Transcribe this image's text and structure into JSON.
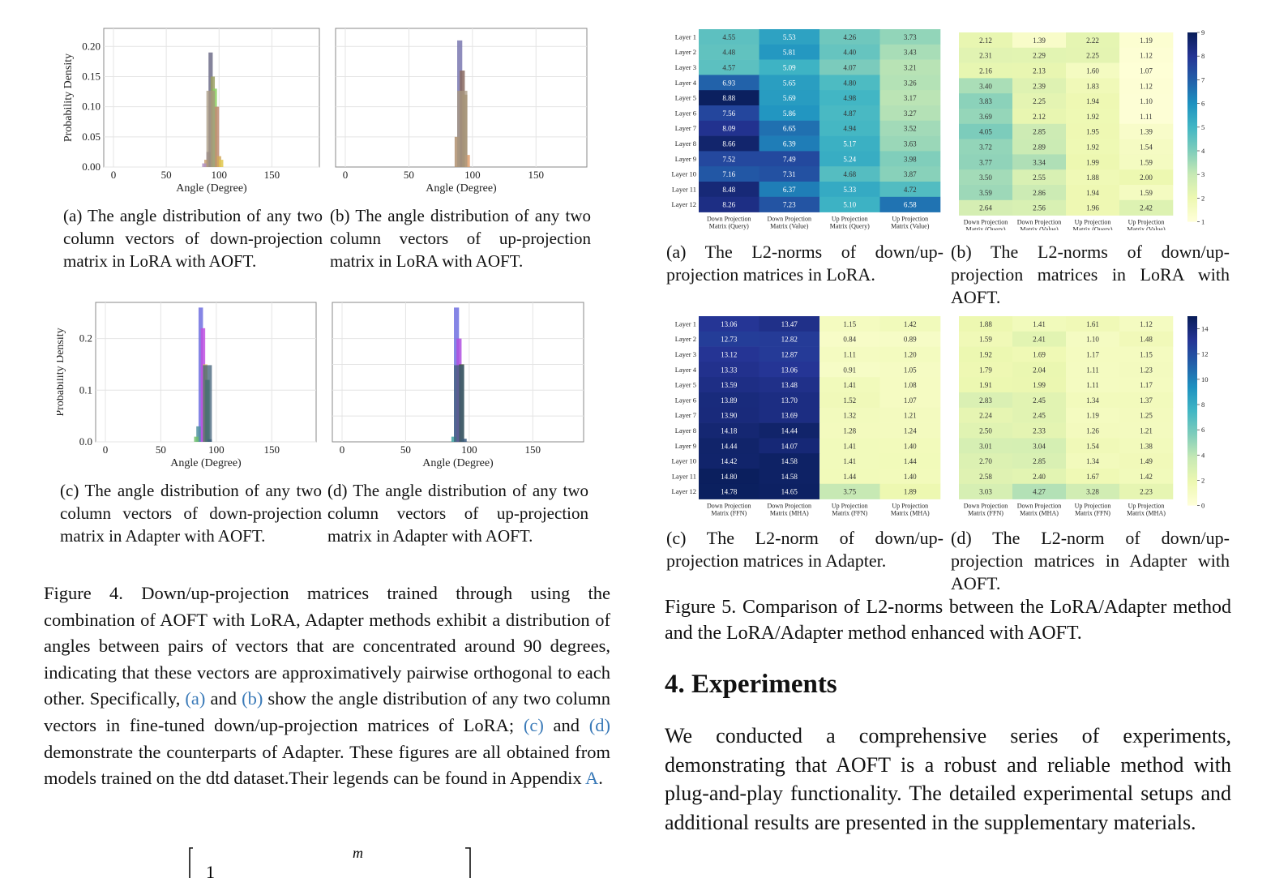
{
  "fig4": {
    "panels": [
      {
        "id": "a",
        "ylabel": "Probability Density",
        "xlabel": "Angle (Degree)",
        "xticks": [
          "0",
          "50",
          "100",
          "150"
        ],
        "yticks": [
          "0.00",
          "0.05",
          "0.10",
          "0.15",
          "0.20"
        ],
        "caption": "(a) The angle distribution of any two column vectors of down-projection matrix in LoRA with AOFT."
      },
      {
        "id": "b",
        "ylabel": "",
        "xlabel": "Angle (Degree)",
        "xticks": [
          "0",
          "50",
          "100",
          "150"
        ],
        "yticks": [],
        "caption": "(b) The angle distribution of any two column vectors of up-projection matrix in LoRA with AOFT."
      },
      {
        "id": "c",
        "ylabel": "Probability Density",
        "xlabel": "Angle (Degree)",
        "xticks": [
          "0",
          "50",
          "100",
          "150"
        ],
        "yticks": [
          "0.0",
          "0.1",
          "0.2"
        ],
        "caption": "(c) The angle distribution of any two column vectors of down-projection matrix in Adapter with AOFT."
      },
      {
        "id": "d",
        "ylabel": "",
        "xlabel": "Angle (Degree)",
        "xticks": [
          "0",
          "50",
          "100",
          "150"
        ],
        "yticks": [],
        "caption": "(d) The angle distribution of any two column vectors of up-projection matrix in Adapter with AOFT."
      }
    ],
    "caption_parts": [
      "Figure 4. Down/up-projection matrices trained through using the combination of AOFT with LoRA, Adapter methods exhibit a distribution of angles between pairs of vectors that are concentrated around 90 degrees, indicating that these vectors are approximatively pairwise orthogonal to each other. Specifically, ",
      "(a)",
      " and ",
      "(b)",
      " show the angle distribution of any two column vectors in fine-tuned down/up-projection matrices of LoRA; ",
      "(c)",
      " and ",
      "(d)",
      " demonstrate the counterparts of Adapter. These figures are all obtained from models trained on the dtd dataset.Their legends can be found in Appendix ",
      "A",
      "."
    ]
  },
  "fig5": {
    "caption": "Figure 5. Comparison of L2-norms between the LoRA/Adapter method and the LoRA/Adapter method enhanced with AOFT.",
    "subcaptions": {
      "a": "(a) The L2-norms of down/up-projection matrices in LoRA.",
      "b": "(b) The L2-norms of down/up-projection matrices in LoRA with AOFT.",
      "c": "(c) The L2-norm of down/up-projection matrices in Adapter.",
      "d": "(d) The L2-norm of down/up-projection matrices in Adapter with AOFT."
    }
  },
  "chart_data": [
    {
      "type": "heatmap",
      "panel": "5a",
      "rows": [
        "Layer 1",
        "Layer 2",
        "Layer 3",
        "Layer 4",
        "Layer 5",
        "Layer 6",
        "Layer 7",
        "Layer 8",
        "Layer 9",
        "Layer 10",
        "Layer 11",
        "Layer 12"
      ],
      "columns": [
        "Down Projection Matrix (Query)",
        "Down Projection Matrix (Value)",
        "Up Projection Matrix (Query)",
        "Up Projection Matrix (Value)"
      ],
      "values": [
        [
          "4.55",
          "5.53",
          "4.26",
          "3.73"
        ],
        [
          "4.48",
          "5.81",
          "4.40",
          "3.43"
        ],
        [
          "4.57",
          "5.09",
          "4.07",
          "3.21"
        ],
        [
          "6.93",
          "5.65",
          "4.80",
          "3.26"
        ],
        [
          "8.88",
          "5.69",
          "4.98",
          "3.17"
        ],
        [
          "7.56",
          "5.86",
          "4.87",
          "3.27"
        ],
        [
          "8.09",
          "6.65",
          "4.94",
          "3.52"
        ],
        [
          "8.66",
          "6.39",
          "5.17",
          "3.63"
        ],
        [
          "7.52",
          "7.49",
          "5.24",
          "3.98"
        ],
        [
          "7.16",
          "7.31",
          "4.68",
          "3.87"
        ],
        [
          "8.48",
          "6.37",
          "5.33",
          "4.72"
        ],
        [
          "8.26",
          "7.23",
          "5.10",
          "6.58"
        ]
      ],
      "colorbar": null
    },
    {
      "type": "heatmap",
      "panel": "5b",
      "rows": [
        "Layer 1",
        "Layer 2",
        "Layer 3",
        "Layer 4",
        "Layer 5",
        "Layer 6",
        "Layer 7",
        "Layer 8",
        "Layer 9",
        "Layer 10",
        "Layer 11",
        "Layer 12"
      ],
      "columns": [
        "Down Projection Matrix (Query)",
        "Down Projection Matrix (Value)",
        "Up Projection Matrix (Query)",
        "Up Projection Matrix (Value)"
      ],
      "values": [
        [
          "2.12",
          "1.39",
          "2.22",
          "1.19"
        ],
        [
          "2.31",
          "2.29",
          "2.25",
          "1.12"
        ],
        [
          "2.16",
          "2.13",
          "1.60",
          "1.07"
        ],
        [
          "3.40",
          "2.39",
          "1.83",
          "1.12"
        ],
        [
          "3.83",
          "2.25",
          "1.94",
          "1.10"
        ],
        [
          "3.69",
          "2.12",
          "1.92",
          "1.11"
        ],
        [
          "4.05",
          "2.85",
          "1.95",
          "1.39"
        ],
        [
          "3.72",
          "2.89",
          "1.92",
          "1.54"
        ],
        [
          "3.77",
          "3.34",
          "1.99",
          "1.59"
        ],
        [
          "3.50",
          "2.55",
          "1.88",
          "2.00"
        ],
        [
          "3.59",
          "2.86",
          "1.94",
          "1.59"
        ],
        [
          "2.64",
          "2.56",
          "1.96",
          "2.42"
        ]
      ],
      "colorbar": {
        "ticks": [
          "1",
          "2",
          "3",
          "4",
          "5",
          "6",
          "7",
          "8",
          "9"
        ],
        "min": 1,
        "max": 9
      }
    },
    {
      "type": "heatmap",
      "panel": "5c",
      "rows": [
        "Layer 1",
        "Layer 2",
        "Layer 3",
        "Layer 4",
        "Layer 5",
        "Layer 6",
        "Layer 7",
        "Layer 8",
        "Layer 9",
        "Layer 10",
        "Layer 11",
        "Layer 12"
      ],
      "columns": [
        "Down Projection Matrix (FFN)",
        "Down Projection Matrix (MHA)",
        "Up Projection Matrix (FFN)",
        "Up Projection Matrix (MHA)"
      ],
      "values": [
        [
          "13.06",
          "13.47",
          "1.15",
          "1.42"
        ],
        [
          "12.73",
          "12.82",
          "0.84",
          "0.89"
        ],
        [
          "13.12",
          "12.87",
          "1.11",
          "1.20"
        ],
        [
          "13.33",
          "13.06",
          "0.91",
          "1.05"
        ],
        [
          "13.59",
          "13.48",
          "1.41",
          "1.08"
        ],
        [
          "13.89",
          "13.70",
          "1.52",
          "1.07"
        ],
        [
          "13.90",
          "13.69",
          "1.32",
          "1.21"
        ],
        [
          "14.18",
          "14.44",
          "1.28",
          "1.24"
        ],
        [
          "14.44",
          "14.07",
          "1.41",
          "1.40"
        ],
        [
          "14.42",
          "14.58",
          "1.41",
          "1.44"
        ],
        [
          "14.80",
          "14.58",
          "1.44",
          "1.40"
        ],
        [
          "14.78",
          "14.65",
          "3.75",
          "1.89"
        ]
      ],
      "colorbar": null
    },
    {
      "type": "heatmap",
      "panel": "5d",
      "rows": [
        "Layer 1",
        "Layer 2",
        "Layer 3",
        "Layer 4",
        "Layer 5",
        "Layer 6",
        "Layer 7",
        "Layer 8",
        "Layer 9",
        "Layer 10",
        "Layer 11",
        "Layer 12"
      ],
      "columns": [
        "Down Projection Matrix (FFN)",
        "Down Projection Matrix (MHA)",
        "Up Projection Matrix (FFN)",
        "Up Projection Matrix (MHA)"
      ],
      "values": [
        [
          "1.88",
          "1.41",
          "1.61",
          "1.12"
        ],
        [
          "1.59",
          "2.41",
          "1.10",
          "1.48"
        ],
        [
          "1.92",
          "1.69",
          "1.17",
          "1.15"
        ],
        [
          "1.79",
          "2.04",
          "1.11",
          "1.23"
        ],
        [
          "1.91",
          "1.99",
          "1.11",
          "1.17"
        ],
        [
          "2.83",
          "2.45",
          "1.34",
          "1.37"
        ],
        [
          "2.24",
          "2.45",
          "1.19",
          "1.25"
        ],
        [
          "2.50",
          "2.33",
          "1.26",
          "1.21"
        ],
        [
          "3.01",
          "3.04",
          "1.54",
          "1.38"
        ],
        [
          "2.70",
          "2.85",
          "1.34",
          "1.49"
        ],
        [
          "2.58",
          "2.40",
          "1.67",
          "1.42"
        ],
        [
          "3.03",
          "4.27",
          "3.28",
          "2.23"
        ]
      ],
      "colorbar": {
        "ticks": [
          "0",
          "2",
          "4",
          "6",
          "8",
          "10",
          "12",
          "14"
        ],
        "min": 0,
        "max": 15
      }
    }
  ],
  "section": {
    "heading": "4. Experiments",
    "paragraph": "We conducted a comprehensive series of experiments, demonstrating that AOFT is a robust and reliable method with plug-and-play functionality. The detailed experimental setups and additional results are presented in the supplementary materials."
  },
  "equation_fragment": {
    "left_numeral": "1",
    "top_symbol": "m"
  }
}
